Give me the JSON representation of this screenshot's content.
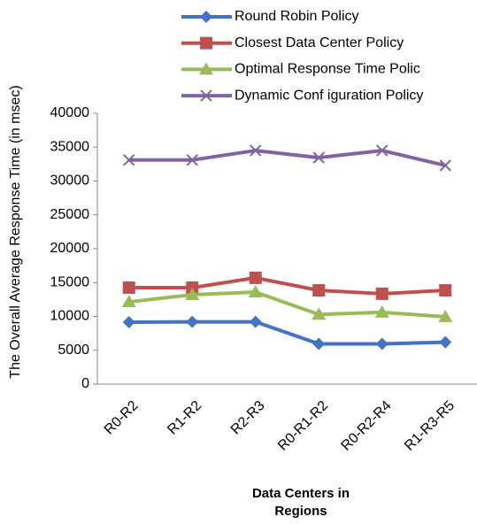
{
  "chart_data": {
    "type": "line",
    "x_label": "Data Centers in Regions",
    "y_label": "The Overall Average Response Time (in msec)",
    "categories": [
      "R0-R2",
      "R1-R2",
      "R2-R3",
      "R0-R1-R2",
      "R0-R2-R4",
      "R1-R3-R5"
    ],
    "series": [
      {
        "name": "Round Robin Policy",
        "color": "#4472c4",
        "marker": "diamond",
        "values": [
          9150,
          9200,
          9200,
          5950,
          5950,
          6200
        ]
      },
      {
        "name": "Closest Data Center Policy",
        "color": "#c0504d",
        "marker": "square",
        "values": [
          14250,
          14250,
          15700,
          13850,
          13350,
          13850
        ]
      },
      {
        "name": "Optimal Response Time Polic",
        "color": "#9bbb59",
        "marker": "triangle",
        "values": [
          12150,
          13200,
          13600,
          10300,
          10600,
          9950
        ]
      },
      {
        "name": "Dynamic Conf iguration Policy",
        "color": "#8064a2",
        "marker": "x",
        "values": [
          33100,
          33100,
          34500,
          33450,
          34500,
          32300
        ]
      }
    ],
    "ylim": [
      0,
      40000
    ],
    "yticks": [
      0,
      5000,
      10000,
      15000,
      20000,
      25000,
      30000,
      35000,
      40000
    ],
    "grid": false,
    "legend": "top"
  }
}
